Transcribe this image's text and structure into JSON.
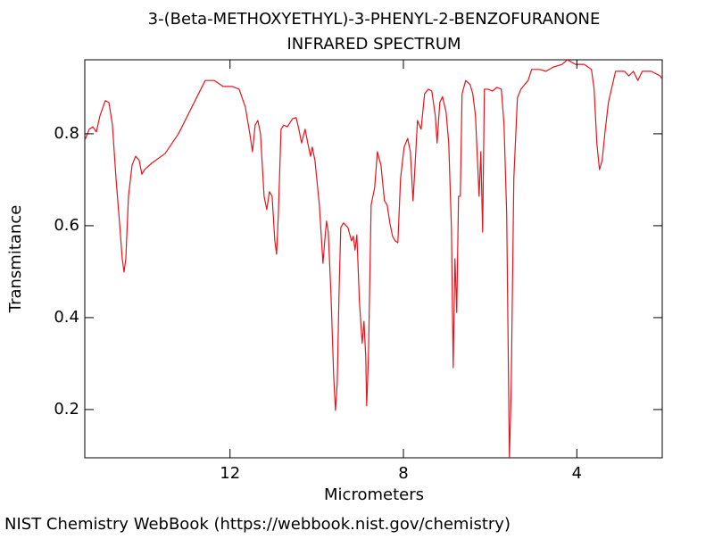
{
  "chart_data": {
    "type": "line",
    "title": "3-(Beta-METHOXYETHYL)-3-PHENYL-2-BENZOFURANONE",
    "subtitle": "INFRARED SPECTRUM",
    "xlabel": "Micrometers",
    "ylabel": "Transmitance",
    "source": "NIST Chemistry WebBook (https://webbook.nist.gov/chemistry)",
    "xlim": [
      15.35,
      2.03
    ],
    "ylim": [
      0.095,
      0.961
    ],
    "xticks": [
      12,
      8,
      4
    ],
    "yticks": [
      0.2,
      0.4,
      0.6,
      0.8
    ],
    "x": [
      15.35,
      15.247,
      15.165,
      15.083,
      15.001,
      14.877,
      14.794,
      14.712,
      14.63,
      14.548,
      14.486,
      14.445,
      14.404,
      14.342,
      14.259,
      14.177,
      14.095,
      14.033,
      13.971,
      13.807,
      13.498,
      13.189,
      12.881,
      12.572,
      12.366,
      12.16,
      11.955,
      11.79,
      11.646,
      11.543,
      11.482,
      11.42,
      11.358,
      11.297,
      11.214,
      11.152,
      11.091,
      11.029,
      10.967,
      10.926,
      10.885,
      10.823,
      10.762,
      10.679,
      10.556,
      10.474,
      10.412,
      10.35,
      10.268,
      10.206,
      10.144,
      10.103,
      10.041,
      10.0,
      9.939,
      9.856,
      9.815,
      9.774,
      9.733,
      9.671,
      9.61,
      9.568,
      9.527,
      9.486,
      9.445,
      9.383,
      9.28,
      9.198,
      9.157,
      9.116,
      9.074,
      9.013,
      8.951,
      8.91,
      8.869,
      8.848,
      8.807,
      8.745,
      8.663,
      8.601,
      8.519,
      8.437,
      8.375,
      8.313,
      8.251,
      8.19,
      8.128,
      8.066,
      7.984,
      7.902,
      7.84,
      7.778,
      7.737,
      7.676,
      7.593,
      7.511,
      7.429,
      7.346,
      7.264,
      7.223,
      7.161,
      7.099,
      7.017,
      6.955,
      6.893,
      6.852,
      6.811,
      6.77,
      6.729,
      6.688,
      6.647,
      6.564,
      6.461,
      6.4,
      6.338,
      6.255,
      6.214,
      6.173,
      6.132,
      6.05,
      5.947,
      5.844,
      5.741,
      5.679,
      5.618,
      5.556,
      5.515,
      5.453,
      5.371,
      5.289,
      5.206,
      5.124,
      5.042,
      4.857,
      4.713,
      4.548,
      4.343,
      4.219,
      4.034,
      3.828,
      3.663,
      3.601,
      3.539,
      3.478,
      3.416,
      3.354,
      3.272,
      3.107,
      2.902,
      2.799,
      2.696,
      2.593,
      2.49,
      2.284,
      2.078,
      2.037
    ],
    "series": [
      {
        "color": "#e8141c",
        "values": [
          0.786,
          0.81,
          0.815,
          0.804,
          0.839,
          0.872,
          0.868,
          0.819,
          0.703,
          0.606,
          0.528,
          0.499,
          0.528,
          0.664,
          0.732,
          0.751,
          0.742,
          0.712,
          0.722,
          0.736,
          0.757,
          0.8,
          0.858,
          0.916,
          0.916,
          0.903,
          0.903,
          0.897,
          0.858,
          0.8,
          0.761,
          0.819,
          0.829,
          0.8,
          0.664,
          0.635,
          0.674,
          0.664,
          0.567,
          0.538,
          0.625,
          0.81,
          0.819,
          0.815,
          0.833,
          0.835,
          0.81,
          0.78,
          0.81,
          0.78,
          0.751,
          0.771,
          0.742,
          0.703,
          0.645,
          0.518,
          0.567,
          0.61,
          0.586,
          0.45,
          0.276,
          0.198,
          0.256,
          0.45,
          0.596,
          0.606,
          0.596,
          0.567,
          0.577,
          0.547,
          0.58,
          0.431,
          0.344,
          0.392,
          0.314,
          0.208,
          0.314,
          0.645,
          0.683,
          0.761,
          0.732,
          0.654,
          0.645,
          0.606,
          0.577,
          0.567,
          0.563,
          0.703,
          0.771,
          0.79,
          0.761,
          0.654,
          0.722,
          0.829,
          0.81,
          0.887,
          0.897,
          0.893,
          0.839,
          0.78,
          0.868,
          0.881,
          0.848,
          0.78,
          0.596,
          0.291,
          0.528,
          0.411,
          0.664,
          0.664,
          0.887,
          0.916,
          0.907,
          0.887,
          0.839,
          0.664,
          0.761,
          0.586,
          0.897,
          0.897,
          0.893,
          0.901,
          0.897,
          0.819,
          0.625,
          0.095,
          0.237,
          0.703,
          0.878,
          0.897,
          0.907,
          0.916,
          0.94,
          0.94,
          0.936,
          0.945,
          0.951,
          0.961,
          0.951,
          0.951,
          0.94,
          0.897,
          0.78,
          0.722,
          0.742,
          0.8,
          0.868,
          0.936,
          0.936,
          0.926,
          0.936,
          0.916,
          0.936,
          0.936,
          0.926,
          0.92
        ]
      }
    ]
  }
}
